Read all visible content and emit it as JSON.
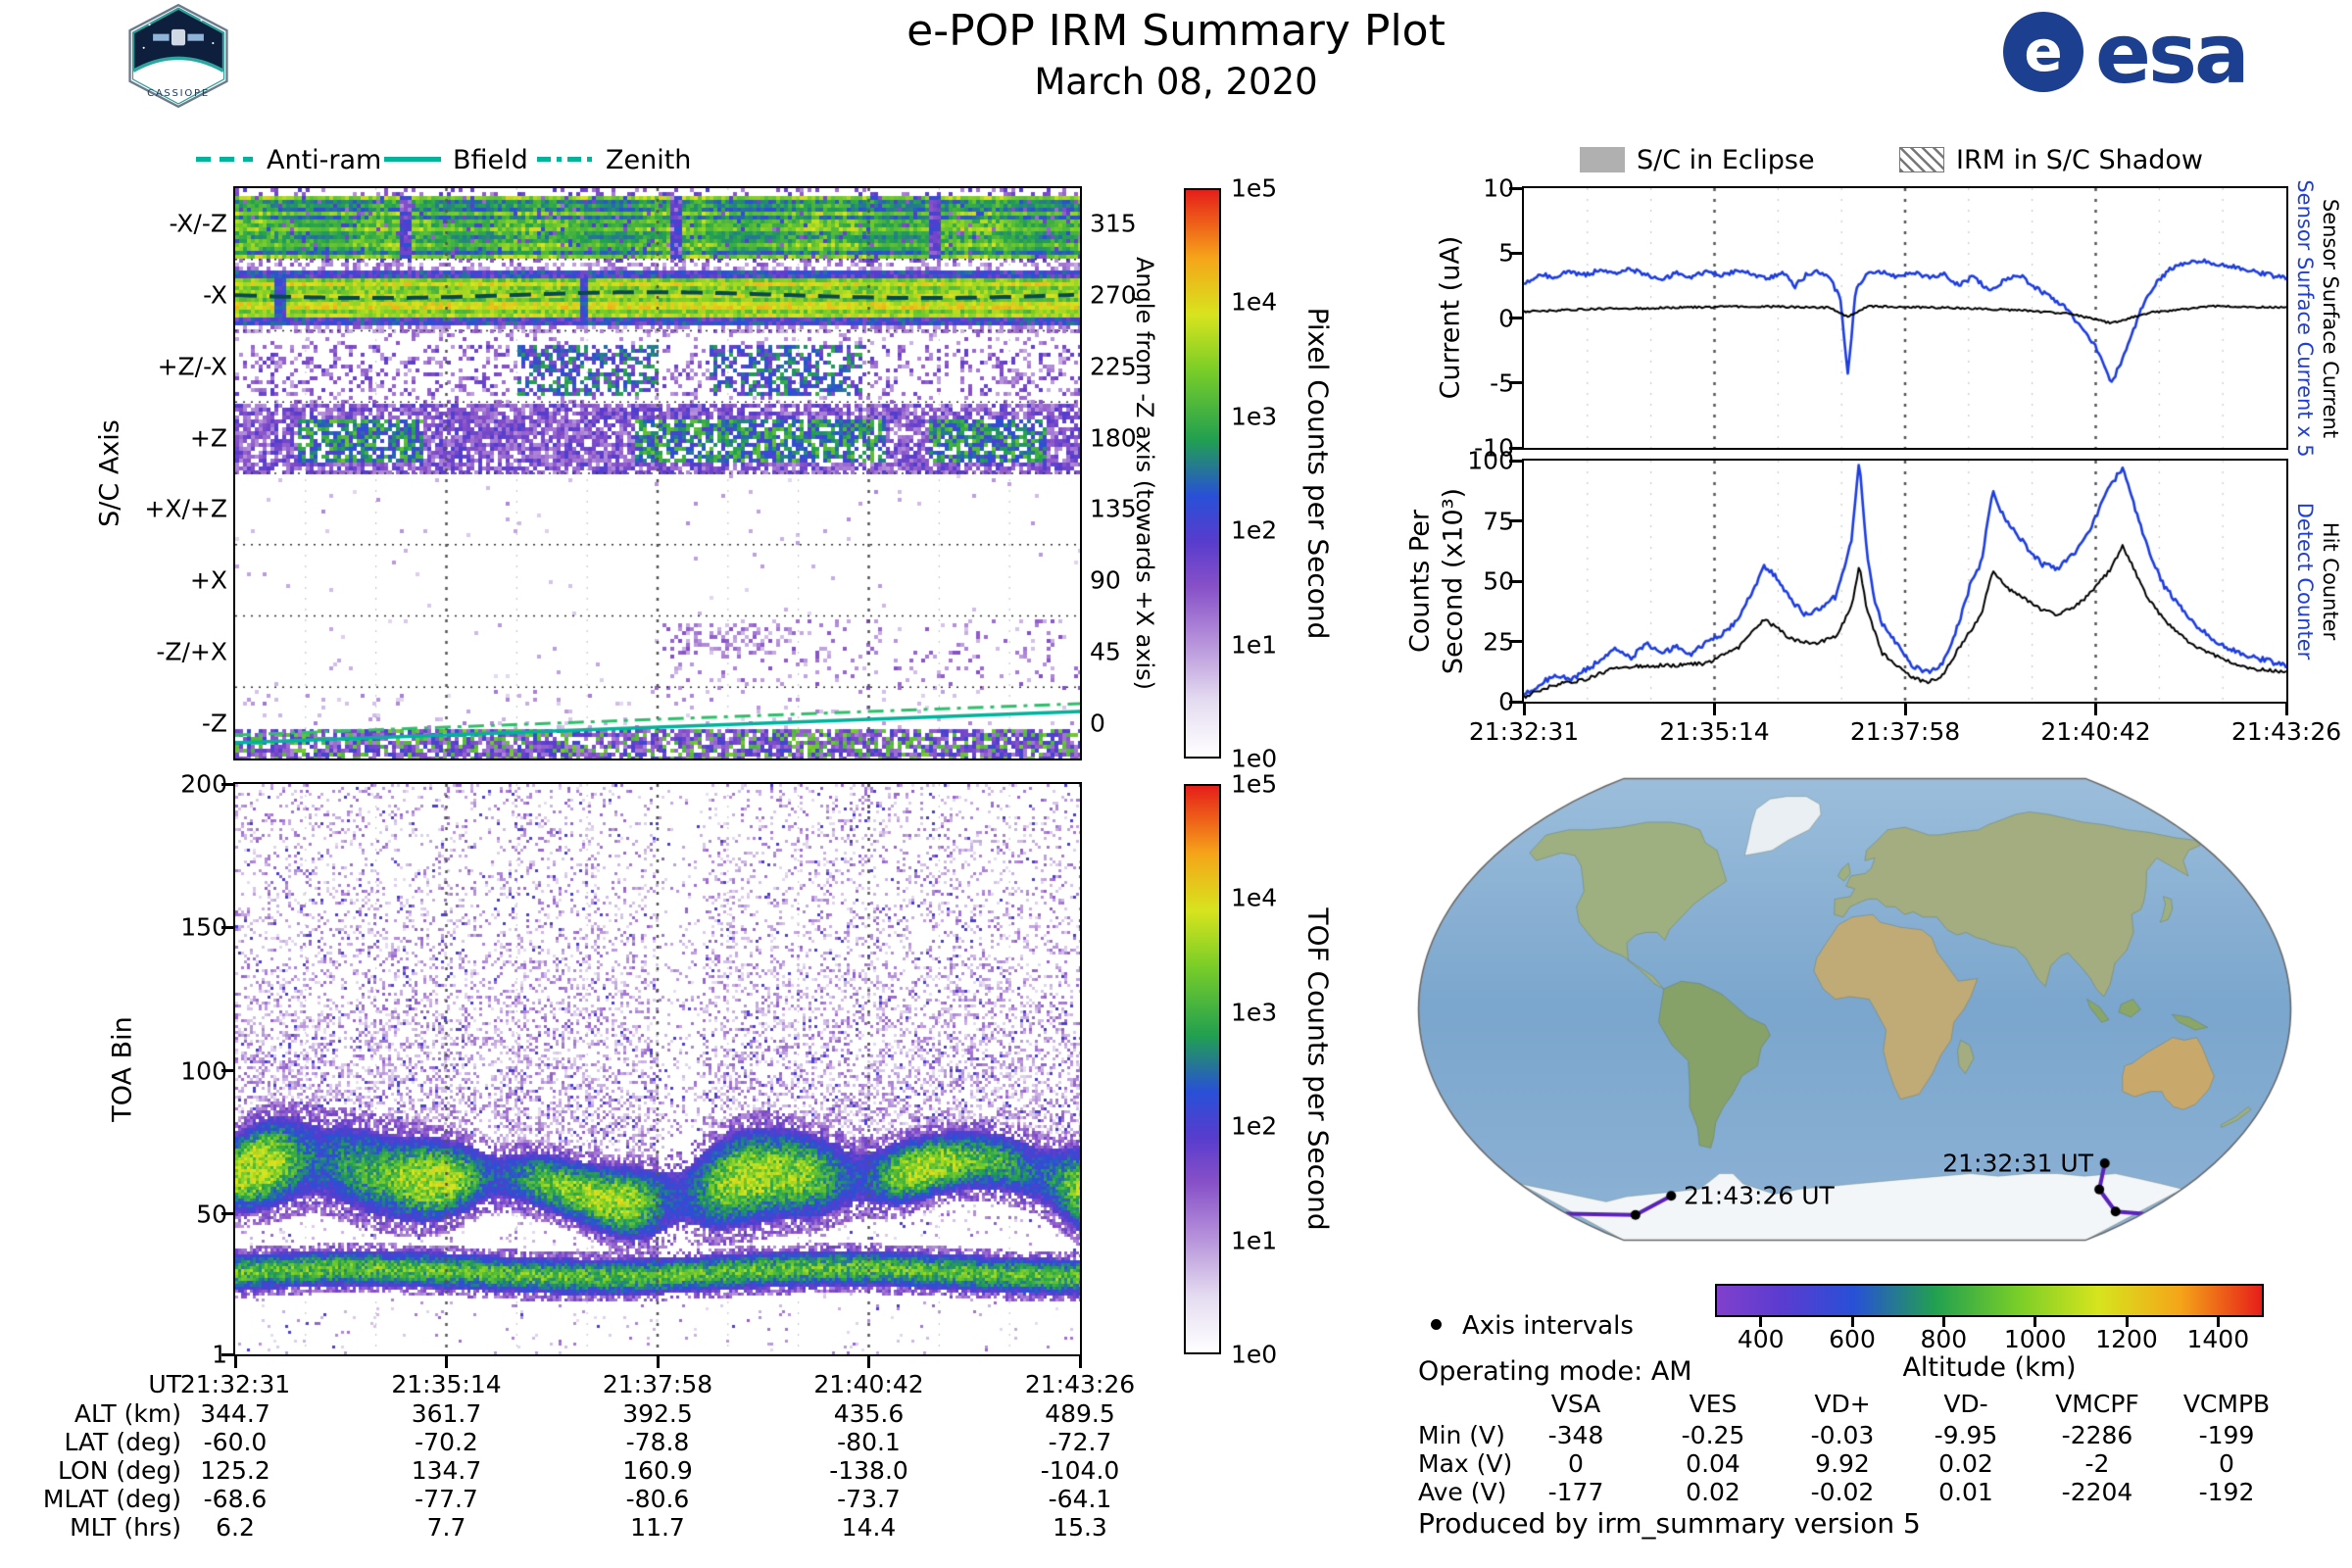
{
  "header": {
    "title": "e-POP IRM Summary Plot",
    "date": "March 08, 2020"
  },
  "logos": {
    "esa_text": "esa",
    "esa_symbol": "e",
    "cassiope_text": "CASSIOPE"
  },
  "colors": {
    "teal": "#00b39b",
    "blue": "#1d3de0",
    "black": "#000000",
    "eclipse_gray": "#b0b0b0",
    "track_purple": "#5a23b8"
  },
  "line_legend": {
    "items": [
      {
        "label": "Anti-ram",
        "style": "dashed"
      },
      {
        "label": "Bfield",
        "style": "solid"
      },
      {
        "label": "Zenith",
        "style": "dashdot"
      }
    ]
  },
  "eclipse_legend": {
    "items": [
      {
        "label": "S/C in Eclipse",
        "style": "solid-gray"
      },
      {
        "label": "IRM in S/C Shadow",
        "style": "hatched"
      }
    ]
  },
  "time_ticks": [
    "21:32:31",
    "21:35:14",
    "21:37:58",
    "21:40:42",
    "21:43:26"
  ],
  "chart_data": [
    {
      "id": "sc_axis_spectrogram",
      "type": "heatmap",
      "ylabel": "S/C Axis",
      "rows": [
        "-X/-Z",
        "-X",
        "+Z/-X",
        "+Z",
        "+X/+Z",
        "+X",
        "-Z/+X",
        "-Z"
      ],
      "right_axis_label": "Angle from -Z axis (towards +X axis)",
      "right_ticks": [
        "315",
        "270",
        "225",
        "180",
        "135",
        "90",
        "45",
        "0"
      ],
      "x_ticks": [
        "21:32:31",
        "21:35:14",
        "21:37:58",
        "21:40:42",
        "21:43:26"
      ],
      "colorbar": {
        "label": "Pixel Counts per Second",
        "ticks": [
          "1e5",
          "1e4",
          "1e3",
          "1e2",
          "1e1",
          "1e0"
        ],
        "scale": "log"
      },
      "overlays": [
        {
          "name": "Anti-ram",
          "style": "dashed",
          "row": "-X",
          "angle_deg": 270
        },
        {
          "name": "Bfield",
          "style": "solid",
          "row": "-Z"
        },
        {
          "name": "Zenith",
          "style": "dashdot",
          "row": "-Z"
        }
      ],
      "description": "Bright green-yellow pixel-count bands fill the -X/-Z and -X rows; diffuse purple with green patches fills +Z/-X, +Z and the bottom of -Z; +X/+Z, +X and -Z/+X are mostly empty."
    },
    {
      "id": "toa_spectrogram",
      "type": "heatmap",
      "ylabel": "TOA Bin",
      "ylim": [
        1,
        200
      ],
      "y_ticks": [
        200,
        150,
        100,
        50,
        1
      ],
      "colorbar": {
        "label": "TOF Counts per Second",
        "ticks": [
          "1e5",
          "1e4",
          "1e3",
          "1e2",
          "1e1",
          "1e0"
        ],
        "scale": "log"
      },
      "bands": [
        {
          "center_bin": 62,
          "half_width": 15,
          "intensity": "high green-yellow"
        },
        {
          "center_bin": 30,
          "half_width": 7,
          "intensity": "medium green"
        }
      ],
      "description": "Diffuse purple speckle from bin ~80 up to 200 fading with height, plus two dense horizontal green bands near bins 55-75 and 25-35."
    },
    {
      "id": "sensor_current",
      "type": "line",
      "ylabel": "Current (uA)",
      "ylim": [
        -10,
        10
      ],
      "y_ticks": [
        10,
        5,
        0,
        -5,
        -10
      ],
      "x_ticks": [
        "21:32:31",
        "21:35:14",
        "21:37:58",
        "21:40:42",
        "21:43:26"
      ],
      "series": [
        {
          "name": "Sensor Surface Current x 5",
          "color": "#1d3de0",
          "keypoints": [
            [
              0,
              2.6
            ],
            [
              0.02,
              3.4
            ],
            [
              0.04,
              3.1
            ],
            [
              0.06,
              3.6
            ],
            [
              0.08,
              3.3
            ],
            [
              0.1,
              3.7
            ],
            [
              0.12,
              3.4
            ],
            [
              0.14,
              3.8
            ],
            [
              0.16,
              3.3
            ],
            [
              0.18,
              2.9
            ],
            [
              0.2,
              3.5
            ],
            [
              0.22,
              3.2
            ],
            [
              0.24,
              3.6
            ],
            [
              0.26,
              3.3
            ],
            [
              0.28,
              3.7
            ],
            [
              0.3,
              3.4
            ],
            [
              0.32,
              3.0
            ],
            [
              0.34,
              3.5
            ],
            [
              0.355,
              2.4
            ],
            [
              0.37,
              3.3
            ],
            [
              0.385,
              3.6
            ],
            [
              0.4,
              3.2
            ],
            [
              0.415,
              1.5
            ],
            [
              0.425,
              -4.3
            ],
            [
              0.435,
              2.0
            ],
            [
              0.45,
              3.6
            ],
            [
              0.47,
              3.5
            ],
            [
              0.49,
              3.2
            ],
            [
              0.51,
              3.6
            ],
            [
              0.53,
              3.1
            ],
            [
              0.55,
              3.4
            ],
            [
              0.57,
              2.5
            ],
            [
              0.59,
              3.2
            ],
            [
              0.61,
              2.1
            ],
            [
              0.63,
              2.9
            ],
            [
              0.65,
              3.3
            ],
            [
              0.67,
              2.4
            ],
            [
              0.69,
              1.6
            ],
            [
              0.71,
              0.8
            ],
            [
              0.73,
              -0.6
            ],
            [
              0.75,
              -2.2
            ],
            [
              0.77,
              -5.1
            ],
            [
              0.79,
              -2.5
            ],
            [
              0.81,
              0.8
            ],
            [
              0.83,
              2.8
            ],
            [
              0.85,
              3.9
            ],
            [
              0.87,
              4.3
            ],
            [
              0.89,
              4.4
            ],
            [
              0.91,
              4.2
            ],
            [
              0.93,
              4.0
            ],
            [
              0.95,
              3.7
            ],
            [
              0.97,
              3.4
            ],
            [
              1,
              3.1
            ]
          ]
        },
        {
          "name": "Sensor Surface Current",
          "color": "#000000",
          "keypoints": [
            [
              0,
              0.5
            ],
            [
              0.1,
              0.7
            ],
            [
              0.2,
              0.8
            ],
            [
              0.3,
              0.9
            ],
            [
              0.4,
              0.8
            ],
            [
              0.425,
              0.1
            ],
            [
              0.45,
              0.9
            ],
            [
              0.55,
              0.8
            ],
            [
              0.65,
              0.6
            ],
            [
              0.72,
              0.3
            ],
            [
              0.77,
              -0.4
            ],
            [
              0.82,
              0.4
            ],
            [
              0.9,
              0.9
            ],
            [
              1,
              0.8
            ]
          ]
        }
      ]
    },
    {
      "id": "counters",
      "type": "line",
      "ylabel": "Counts Per Second (x10³)",
      "ylabel_lines": [
        "Counts Per",
        "Second (x10³)"
      ],
      "ylim": [
        0,
        100
      ],
      "y_ticks": [
        100,
        75,
        50,
        25,
        0
      ],
      "x_ticks": [
        "21:32:31",
        "21:35:14",
        "21:37:58",
        "21:40:42",
        "21:43:26"
      ],
      "series": [
        {
          "name": "Detect Counter",
          "color": "#1d3de0",
          "keypoints": [
            [
              0,
              3
            ],
            [
              0.02,
              7
            ],
            [
              0.04,
              11
            ],
            [
              0.06,
              9
            ],
            [
              0.08,
              13
            ],
            [
              0.1,
              17
            ],
            [
              0.12,
              22
            ],
            [
              0.14,
              18
            ],
            [
              0.16,
              24
            ],
            [
              0.18,
              20
            ],
            [
              0.2,
              23
            ],
            [
              0.22,
              20
            ],
            [
              0.24,
              25
            ],
            [
              0.26,
              28
            ],
            [
              0.28,
              34
            ],
            [
              0.3,
              46
            ],
            [
              0.315,
              56
            ],
            [
              0.33,
              52
            ],
            [
              0.35,
              42
            ],
            [
              0.37,
              36
            ],
            [
              0.39,
              39
            ],
            [
              0.41,
              44
            ],
            [
              0.43,
              68
            ],
            [
              0.44,
              100
            ],
            [
              0.45,
              62
            ],
            [
              0.46,
              42
            ],
            [
              0.47,
              32
            ],
            [
              0.49,
              24
            ],
            [
              0.51,
              15
            ],
            [
              0.53,
              12
            ],
            [
              0.55,
              16
            ],
            [
              0.57,
              32
            ],
            [
              0.585,
              48
            ],
            [
              0.6,
              58
            ],
            [
              0.615,
              88
            ],
            [
              0.63,
              76
            ],
            [
              0.645,
              70
            ],
            [
              0.66,
              64
            ],
            [
              0.68,
              57
            ],
            [
              0.7,
              55
            ],
            [
              0.72,
              61
            ],
            [
              0.74,
              70
            ],
            [
              0.755,
              80
            ],
            [
              0.77,
              90
            ],
            [
              0.785,
              97
            ],
            [
              0.8,
              82
            ],
            [
              0.82,
              62
            ],
            [
              0.84,
              48
            ],
            [
              0.86,
              40
            ],
            [
              0.88,
              32
            ],
            [
              0.9,
              27
            ],
            [
              0.92,
              23
            ],
            [
              0.95,
              19
            ],
            [
              1,
              15
            ]
          ]
        },
        {
          "name": "Hit Counter",
          "color": "#000000",
          "keypoints": [
            [
              0,
              2
            ],
            [
              0.04,
              7
            ],
            [
              0.08,
              9
            ],
            [
              0.12,
              14
            ],
            [
              0.16,
              15
            ],
            [
              0.2,
              15
            ],
            [
              0.24,
              16
            ],
            [
              0.28,
              22
            ],
            [
              0.3,
              30
            ],
            [
              0.315,
              34
            ],
            [
              0.33,
              31
            ],
            [
              0.35,
              26
            ],
            [
              0.38,
              24
            ],
            [
              0.41,
              27
            ],
            [
              0.43,
              40
            ],
            [
              0.44,
              57
            ],
            [
              0.45,
              38
            ],
            [
              0.47,
              20
            ],
            [
              0.49,
              15
            ],
            [
              0.51,
              10
            ],
            [
              0.53,
              8
            ],
            [
              0.55,
              11
            ],
            [
              0.57,
              22
            ],
            [
              0.6,
              36
            ],
            [
              0.615,
              55
            ],
            [
              0.63,
              48
            ],
            [
              0.65,
              44
            ],
            [
              0.68,
              38
            ],
            [
              0.7,
              36
            ],
            [
              0.72,
              39
            ],
            [
              0.74,
              44
            ],
            [
              0.77,
              55
            ],
            [
              0.785,
              65
            ],
            [
              0.8,
              55
            ],
            [
              0.82,
              42
            ],
            [
              0.84,
              34
            ],
            [
              0.86,
              28
            ],
            [
              0.88,
              23
            ],
            [
              0.9,
              20
            ],
            [
              0.92,
              17
            ],
            [
              0.95,
              14
            ],
            [
              1,
              12
            ]
          ]
        }
      ]
    },
    {
      "id": "altitude_colorbar",
      "type": "colorbar",
      "label": "Altitude (km)",
      "ticks": [
        "400",
        "600",
        "800",
        "1000",
        "1200",
        "1400"
      ],
      "range": [
        300,
        1500
      ]
    }
  ],
  "ephemeris_table": {
    "rows": [
      {
        "label": "UT",
        "values": [
          "21:32:31",
          "21:35:14",
          "21:37:58",
          "21:40:42",
          "21:43:26"
        ]
      },
      {
        "label": "ALT (km)",
        "values": [
          "344.7",
          "361.7",
          "392.5",
          "435.6",
          "489.5"
        ]
      },
      {
        "label": "LAT (deg)",
        "values": [
          "-60.0",
          "-70.2",
          "-78.8",
          "-80.1",
          "-72.7"
        ]
      },
      {
        "label": "LON (deg)",
        "values": [
          "125.2",
          "134.7",
          "160.9",
          "-138.0",
          "-104.0"
        ]
      },
      {
        "label": "MLAT (deg)",
        "values": [
          "-68.6",
          "-77.7",
          "-80.6",
          "-73.7",
          "-64.1"
        ]
      },
      {
        "label": "MLT (hrs)",
        "values": [
          "6.2",
          "7.7",
          "11.7",
          "14.4",
          "15.3"
        ]
      }
    ]
  },
  "map": {
    "start_label": "21:32:31 UT",
    "end_label": "21:43:26 UT",
    "axis_intervals_label": "Axis intervals",
    "track_points": [
      {
        "ut": "21:32:31",
        "lon": 125.2,
        "lat": -60.0
      },
      {
        "ut": "21:35:14",
        "lon": 134.7,
        "lat": -70.2
      },
      {
        "ut": "21:37:58",
        "lon": 160.9,
        "lat": -78.8
      },
      {
        "ut": "21:40:42",
        "lon": -138.0,
        "lat": -80.1
      },
      {
        "ut": "21:43:26",
        "lon": -104.0,
        "lat": -72.7
      }
    ]
  },
  "operating_mode": "Operating mode: AM",
  "voltage_table": {
    "columns": [
      "VSA",
      "VES",
      "VD+",
      "VD-",
      "VMCPF",
      "VCMPB"
    ],
    "rows": [
      {
        "label": "Min (V)",
        "values": [
          "-348",
          "-0.25",
          "-0.03",
          "-9.95",
          "-2286",
          "-199"
        ]
      },
      {
        "label": "Max (V)",
        "values": [
          "0",
          "0.04",
          "9.92",
          "0.02",
          "-2",
          "0"
        ]
      },
      {
        "label": "Ave (V)",
        "values": [
          "-177",
          "0.02",
          "-0.02",
          "0.01",
          "-2204",
          "-192"
        ]
      }
    ]
  },
  "footer": "Produced by irm_summary version 5"
}
